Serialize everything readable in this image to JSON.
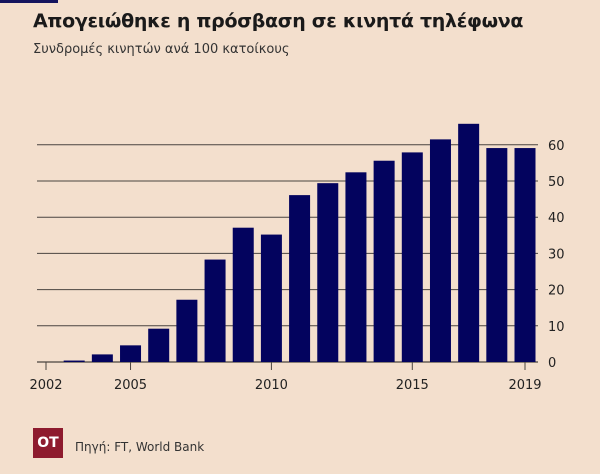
{
  "header": {
    "title": "Απογειώθηκε η πρόσβαση σε κινητά τηλέφωνα",
    "subtitle": "Συνδρομές κινητών ανά 100 κατοίκους"
  },
  "footer": {
    "logo_text": "OT",
    "source": "Πηγή: FT, World Bank"
  },
  "colors": {
    "bar": "#03035e",
    "background": "#f3dfcd",
    "logo": "#8e1b2e"
  },
  "chart_data": {
    "type": "bar",
    "title": "Απογειώθηκε η πρόσβαση σε κινητά τηλέφωνα",
    "ylabel": "Συνδρομές κινητών ανά 100 κατοίκους",
    "categories": [
      2002,
      2003,
      2004,
      2005,
      2006,
      2007,
      2008,
      2009,
      2010,
      2011,
      2012,
      2013,
      2014,
      2015,
      2016,
      2017,
      2018,
      2019
    ],
    "values": [
      0,
      0.4,
      2.1,
      4.6,
      9.2,
      17.2,
      28.3,
      37.1,
      35.2,
      46.1,
      49.4,
      52.4,
      55.6,
      57.9,
      61.5,
      65.8,
      59.1,
      59.1
    ],
    "ylim": [
      0,
      70
    ],
    "yticks": [
      0,
      10,
      20,
      30,
      40,
      50,
      60
    ],
    "xtick_labels": [
      "2002",
      "2005",
      "2010",
      "2015",
      "2019"
    ],
    "grid": true,
    "yaxis_side": "right"
  }
}
